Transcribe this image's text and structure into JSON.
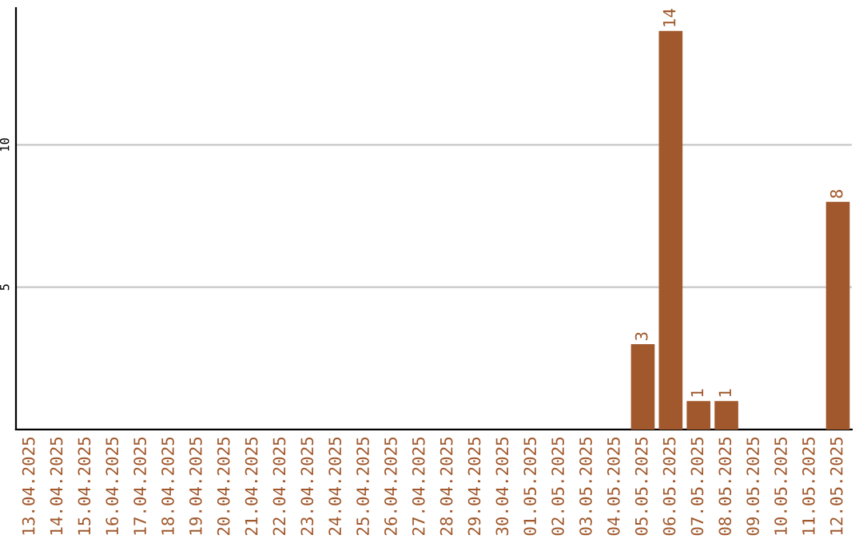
{
  "chart_data": {
    "type": "bar",
    "categories": [
      "13.04.2025",
      "14.04.2025",
      "15.04.2025",
      "16.04.2025",
      "17.04.2025",
      "18.04.2025",
      "19.04.2025",
      "20.04.2025",
      "21.04.2025",
      "22.04.2025",
      "23.04.2025",
      "24.04.2025",
      "25.04.2025",
      "26.04.2025",
      "27.04.2025",
      "28.04.2025",
      "29.04.2025",
      "30.04.2025",
      "01.05.2025",
      "02.05.2025",
      "03.05.2025",
      "04.05.2025",
      "05.05.2025",
      "06.05.2025",
      "07.05.2025",
      "08.05.2025",
      "09.05.2025",
      "10.05.2025",
      "11.05.2025",
      "12.05.2025"
    ],
    "values": [
      0,
      0,
      0,
      0,
      0,
      0,
      0,
      0,
      0,
      0,
      0,
      0,
      0,
      0,
      0,
      0,
      0,
      0,
      0,
      0,
      0,
      0,
      3,
      14,
      1,
      1,
      0,
      0,
      0,
      8
    ],
    "value_labels": [
      null,
      null,
      null,
      null,
      null,
      null,
      null,
      null,
      null,
      null,
      null,
      null,
      null,
      null,
      null,
      null,
      null,
      null,
      null,
      null,
      null,
      null,
      "3",
      "14",
      "1",
      "1",
      null,
      null,
      null,
      "8"
    ],
    "color": "#a0582c",
    "ylim": [
      0,
      14.8
    ],
    "yticks": [
      5,
      10
    ],
    "grid": "y"
  }
}
